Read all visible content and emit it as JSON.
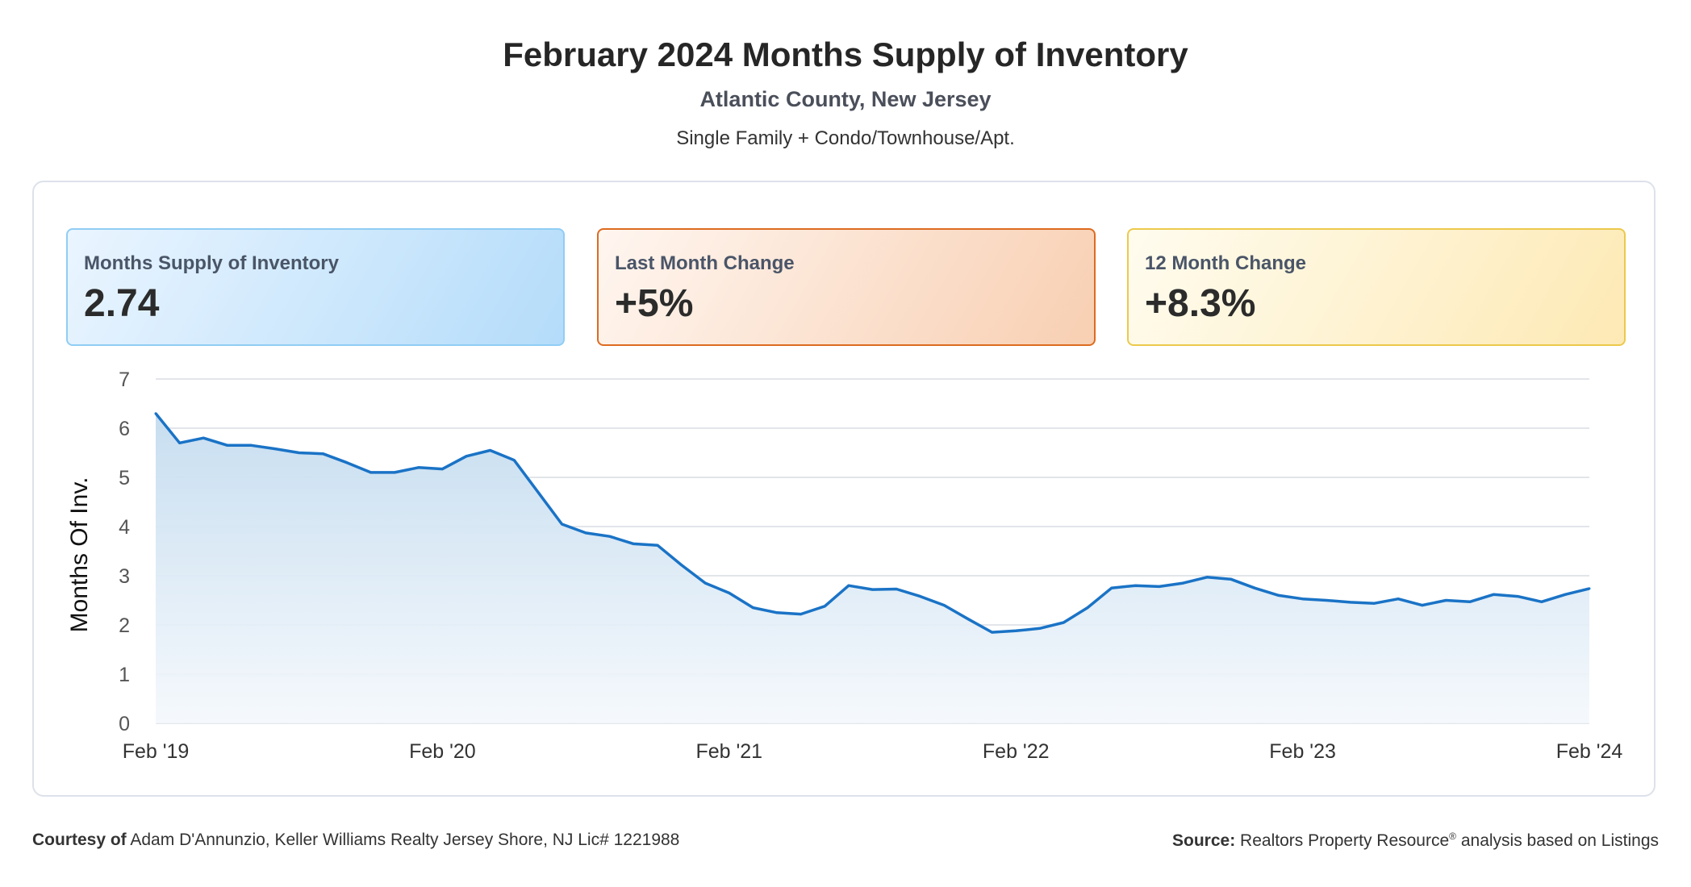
{
  "header": {
    "title": "February 2024 Months Supply of Inventory",
    "subtitle": "Atlantic County, New Jersey",
    "property_types": "Single Family + Condo/Townhouse/Apt."
  },
  "stats": [
    {
      "label": "Months Supply of Inventory",
      "value": "2.74",
      "accent": "#90cdf4"
    },
    {
      "label": "Last Month Change",
      "value": "+5%",
      "accent": "#dd6b20"
    },
    {
      "label": "12 Month Change",
      "value": "+8.3%",
      "accent": "#ecc94b"
    }
  ],
  "chart_data": {
    "type": "area",
    "title": "",
    "xlabel": "",
    "ylabel": "Months Of Inv.",
    "ylim": [
      0,
      7
    ],
    "yticks": [
      "0",
      "1",
      "2",
      "3",
      "4",
      "5",
      "6",
      "7"
    ],
    "xtick_labels": [
      "Feb '19",
      "Feb '20",
      "Feb '21",
      "Feb '22",
      "Feb '23",
      "Feb '24"
    ],
    "grid": true,
    "line_color": "#1a73c6",
    "series": [
      {
        "values": [
          6.3,
          5.7,
          5.8,
          5.65,
          5.65,
          5.58,
          5.5,
          5.48,
          5.3,
          5.1,
          5.1,
          5.2,
          5.17,
          5.43,
          5.55,
          5.35,
          4.7,
          4.05,
          3.87,
          3.8,
          3.65,
          3.62,
          3.22,
          2.85,
          2.65,
          2.35,
          2.25,
          2.22,
          2.38,
          2.8,
          2.72,
          2.73,
          2.58,
          2.4,
          2.12,
          1.85,
          1.88,
          1.93,
          2.05,
          2.35,
          2.75,
          2.8,
          2.78,
          2.85,
          2.97,
          2.93,
          2.75,
          2.6,
          2.53,
          2.5,
          2.46,
          2.44,
          2.53,
          2.4,
          2.5,
          2.47,
          2.62,
          2.58,
          2.47,
          2.62,
          2.74
        ]
      }
    ]
  },
  "footer": {
    "courtesy_label": "Courtesy of",
    "courtesy_text": "Adam D'Annunzio, Keller Williams Realty Jersey Shore, NJ Lic# 1221988",
    "source_label": "Source:",
    "source_text": "Realtors Property Resource",
    "source_sup": "®",
    "source_suffix": "analysis based on Listings"
  }
}
